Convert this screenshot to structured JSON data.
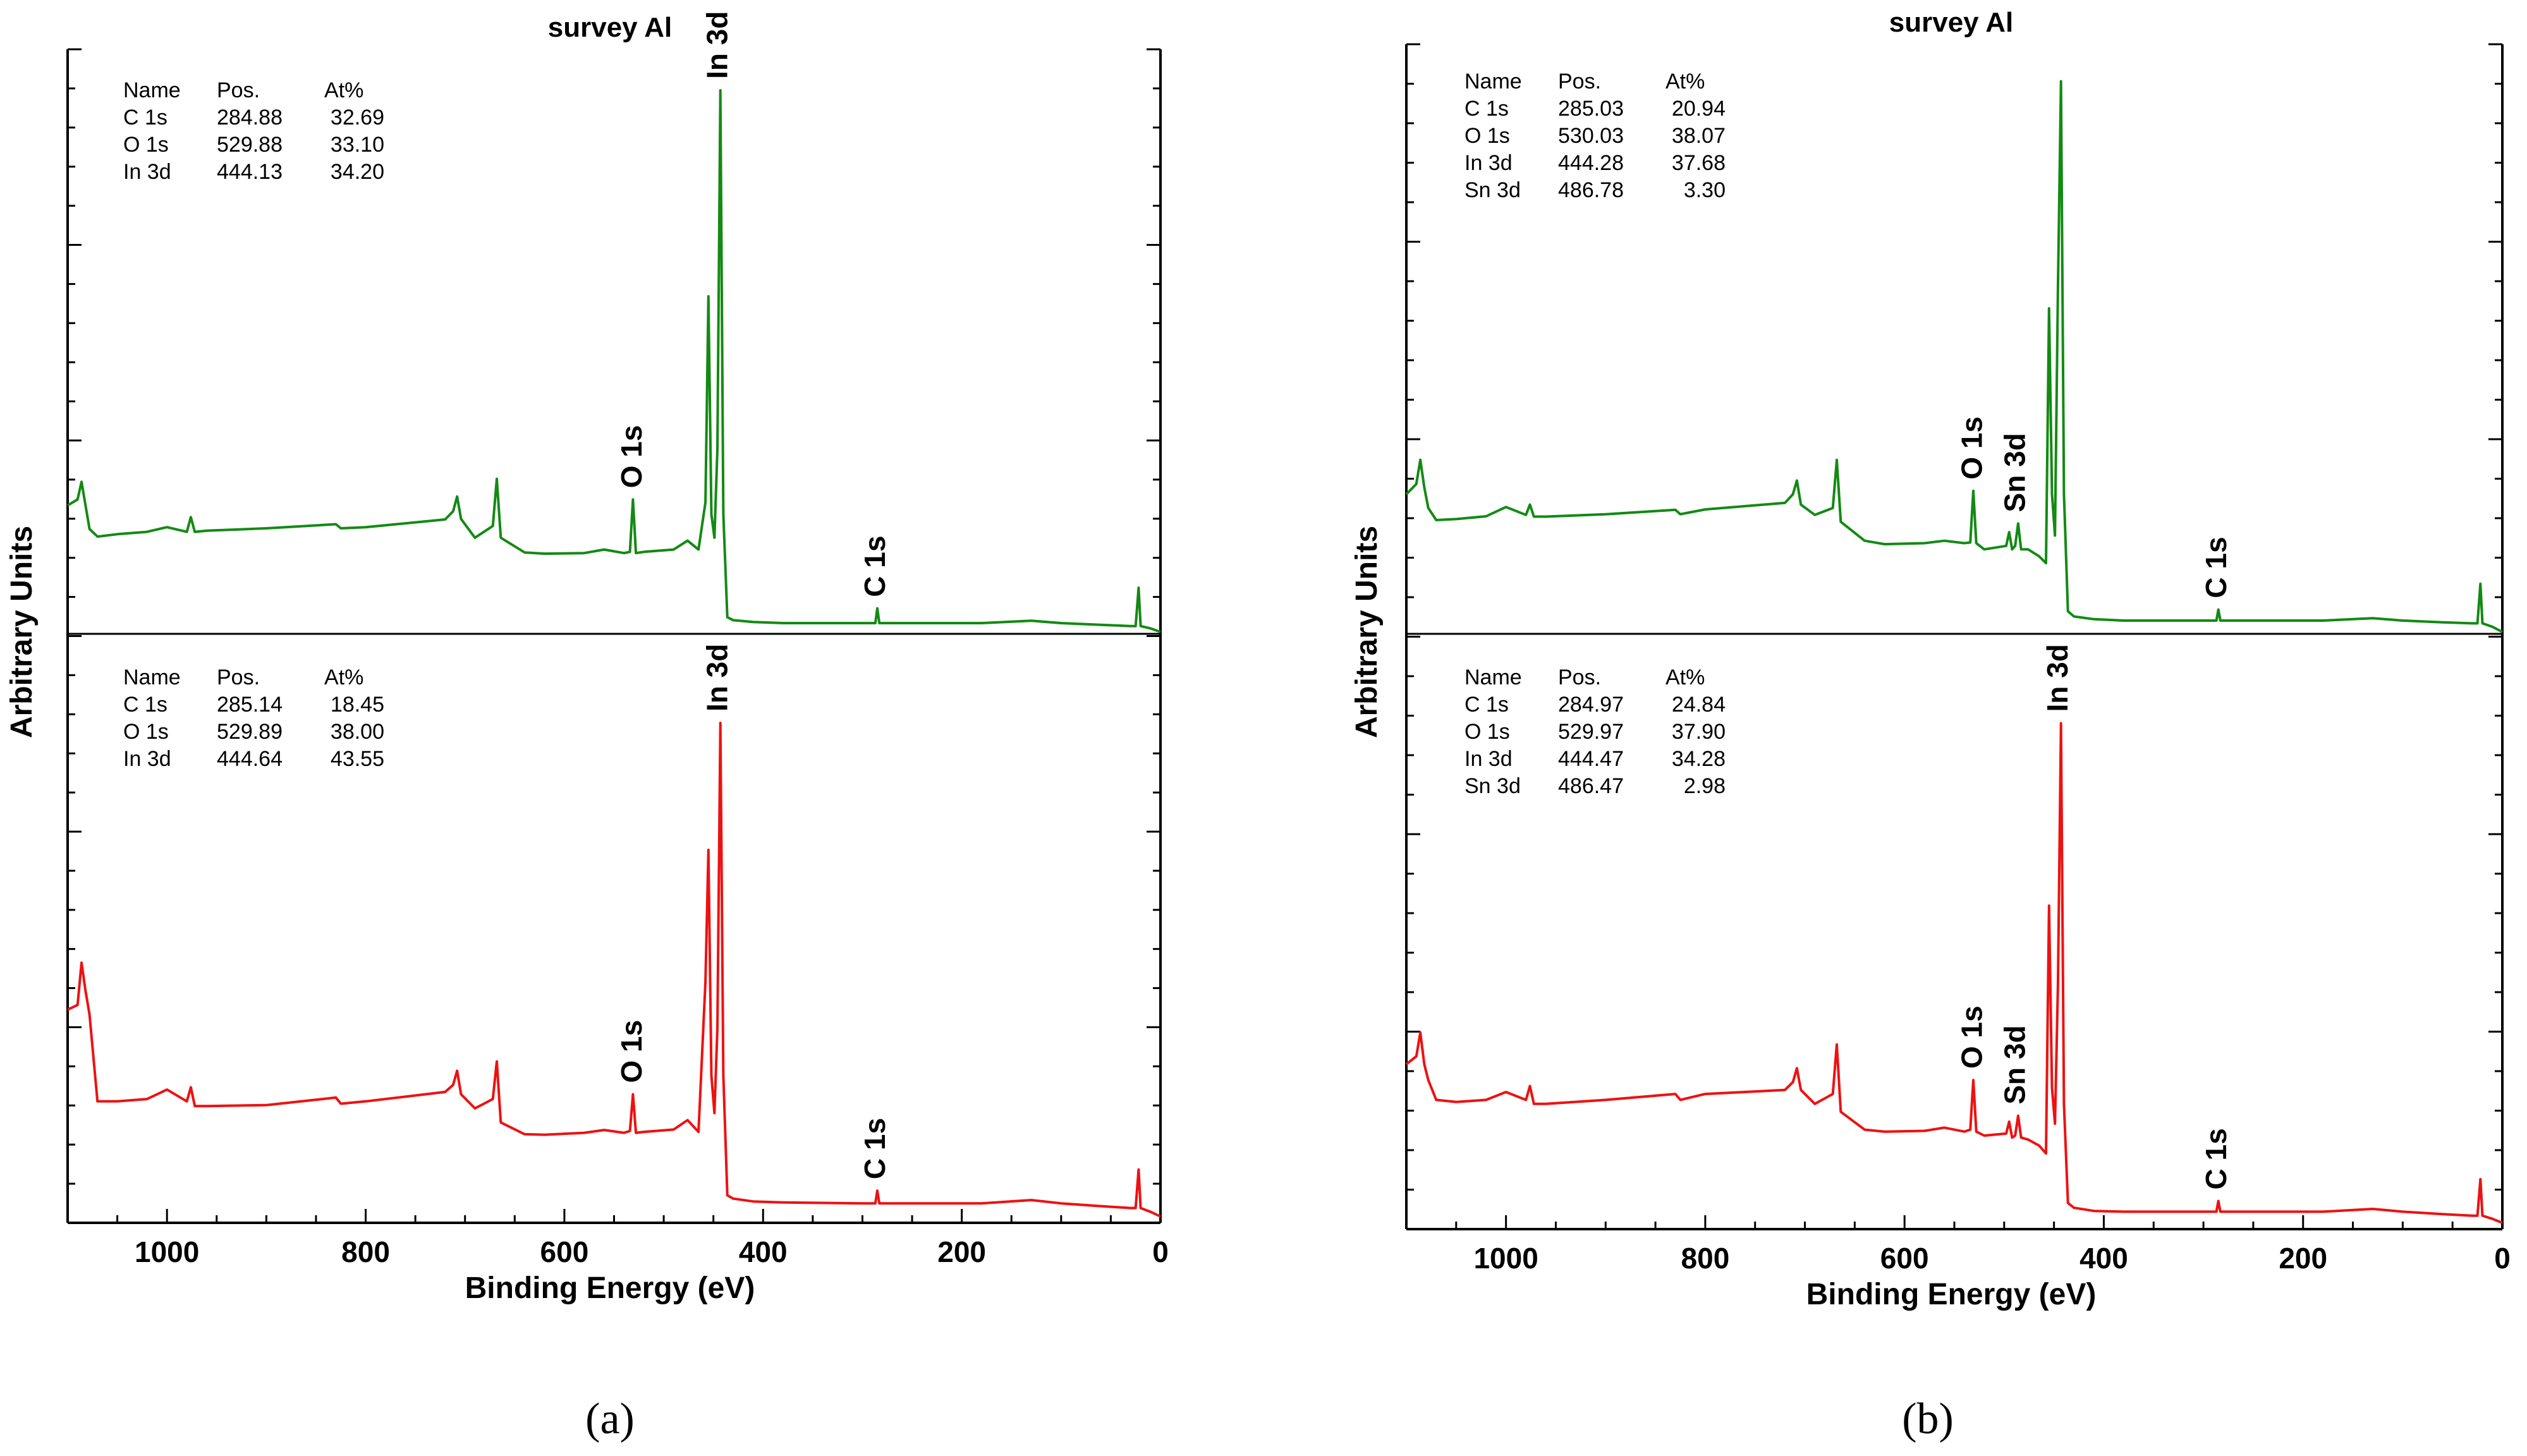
{
  "colors": {
    "top_spectrum": "#138a13",
    "bottom_spectrum": "#ee1111",
    "axis": "#000000"
  },
  "chart_data": [
    {
      "type": "line",
      "panel_caption": "(a)",
      "title": "survey Al",
      "xlabel": "Binding Energy (eV)",
      "ylabel": "Arbitrary Units",
      "x_reversed": true,
      "xlim": [
        1100,
        0
      ],
      "x_ticks": [
        1000,
        800,
        600,
        400,
        200,
        0
      ],
      "y_tick_labels": "none",
      "series": [
        {
          "name": "top (green)",
          "color_key": "top_spectrum",
          "tables": {
            "header": [
              "Name",
              "Pos.",
              "At%"
            ],
            "rows": [
              [
                "C 1s",
                "284.88",
                "32.69"
              ],
              [
                "O 1s",
                "529.88",
                "33.10"
              ],
              [
                "In 3d",
                "444.13",
                "34.20"
              ]
            ]
          },
          "peak_labels": [
            {
              "text": "In 3d",
              "x": 444
            },
            {
              "text": "O 1s",
              "x": 530
            },
            {
              "text": "C 1s",
              "x": 285
            }
          ],
          "x": [
            1100,
            1090,
            1086,
            1082,
            1078,
            1070,
            1050,
            1020,
            1000,
            980,
            976,
            972,
            960,
            900,
            830,
            825,
            800,
            720,
            712,
            708,
            704,
            690,
            672,
            668,
            664,
            640,
            620,
            580,
            560,
            540,
            534,
            531,
            528,
            520,
            490,
            476,
            465,
            458,
            455,
            452,
            449,
            446,
            443,
            440,
            436,
            430,
            410,
            380,
            300,
            287,
            285,
            283,
            250,
            180,
            130,
            100,
            60,
            30,
            25,
            22,
            20,
            10,
            0
          ],
          "y": [
            21.5,
            22.5,
            25.5,
            21.5,
            17.5,
            16.2,
            16.6,
            17.0,
            17.8,
            17.0,
            19.5,
            17.0,
            17.2,
            17.6,
            18.3,
            17.6,
            17.8,
            19.1,
            20.5,
            23.0,
            19.2,
            16.0,
            18.0,
            26.0,
            16.0,
            13.5,
            13.3,
            13.4,
            14.0,
            13.4,
            13.6,
            22.5,
            13.4,
            13.6,
            14.0,
            15.5,
            14.0,
            22.0,
            57.0,
            20.0,
            16.0,
            31.0,
            92.0,
            20.0,
            2.5,
            2.0,
            1.7,
            1.5,
            1.5,
            1.5,
            4.0,
            1.5,
            1.5,
            1.5,
            1.9,
            1.5,
            1.2,
            1.0,
            1.0,
            7.5,
            1.0,
            0.6,
            0.0
          ]
        },
        {
          "name": "bottom (red)",
          "color_key": "bottom_spectrum",
          "tables": {
            "header": [
              "Name",
              "Pos.",
              "At%"
            ],
            "rows": [
              [
                "C 1s",
                "285.14",
                "18.45"
              ],
              [
                "O 1s",
                "529.89",
                "38.00"
              ],
              [
                "In 3d",
                "444.64",
                "43.55"
              ]
            ]
          },
          "peak_labels": [
            {
              "text": "In 3d",
              "x": 444
            },
            {
              "text": "O 1s",
              "x": 530
            },
            {
              "text": "C 1s",
              "x": 285
            }
          ],
          "x": [
            1100,
            1090,
            1086,
            1082,
            1078,
            1070,
            1050,
            1020,
            1000,
            980,
            976,
            972,
            960,
            900,
            830,
            825,
            800,
            720,
            712,
            708,
            704,
            690,
            672,
            668,
            664,
            640,
            620,
            580,
            560,
            540,
            534,
            531,
            528,
            520,
            490,
            476,
            465,
            458,
            455,
            452,
            449,
            446,
            443,
            440,
            436,
            430,
            410,
            380,
            300,
            287,
            285,
            283,
            250,
            180,
            130,
            100,
            60,
            30,
            25,
            22,
            20,
            10,
            0
          ],
          "y": [
            44.0,
            45.0,
            54.0,
            48.0,
            43.0,
            24.5,
            24.5,
            25.0,
            27.0,
            24.5,
            27.5,
            23.5,
            23.5,
            23.7,
            25.3,
            24.0,
            24.5,
            26.5,
            28.0,
            31.0,
            26.0,
            23.0,
            25.0,
            33.0,
            20.0,
            17.5,
            17.4,
            17.8,
            18.4,
            17.8,
            18.2,
            26.0,
            17.8,
            18.0,
            18.5,
            20.5,
            18.0,
            50.0,
            78.0,
            30.0,
            22.0,
            40.0,
            105.0,
            30.0,
            4.5,
            3.8,
            3.2,
            3.0,
            2.8,
            2.8,
            5.5,
            2.8,
            2.8,
            2.8,
            3.5,
            2.8,
            2.2,
            1.8,
            1.8,
            10.0,
            1.8,
            1.0,
            0.0
          ]
        }
      ]
    },
    {
      "type": "line",
      "panel_caption": "(b)",
      "title": "survey Al",
      "xlabel": "Binding Energy (eV)",
      "ylabel": "Arbitrary Units",
      "x_reversed": true,
      "xlim": [
        1100,
        0
      ],
      "x_ticks": [
        1000,
        800,
        600,
        400,
        200,
        0
      ],
      "y_tick_labels": "none",
      "series": [
        {
          "name": "top (green)",
          "color_key": "top_spectrum",
          "tables": {
            "header": [
              "Name",
              "Pos.",
              "At%"
            ],
            "rows": [
              [
                "C 1s",
                "285.03",
                "20.94"
              ],
              [
                "O 1s",
                "530.03",
                "38.07"
              ],
              [
                "In 3d",
                "444.28",
                "37.68"
              ],
              [
                "Sn 3d",
                "486.78",
                "3.30"
              ]
            ]
          },
          "peak_labels": [
            {
              "text": "O 1s",
              "x": 530
            },
            {
              "text": "Sn 3d",
              "x": 487
            },
            {
              "text": "C 1s",
              "x": 285
            }
          ],
          "x": [
            1100,
            1090,
            1086,
            1082,
            1078,
            1070,
            1050,
            1020,
            1000,
            980,
            976,
            972,
            960,
            900,
            830,
            825,
            800,
            720,
            712,
            708,
            704,
            690,
            672,
            668,
            664,
            640,
            620,
            580,
            560,
            540,
            534,
            531,
            528,
            520,
            498,
            495,
            492,
            489,
            486,
            483,
            476,
            465,
            458,
            455,
            452,
            449,
            446,
            443,
            440,
            436,
            430,
            410,
            380,
            300,
            287,
            285,
            283,
            250,
            180,
            130,
            100,
            60,
            30,
            25,
            22,
            20,
            10,
            0
          ],
          "y": [
            40.0,
            43.0,
            50.0,
            42.0,
            36.0,
            32.5,
            32.8,
            33.6,
            36.3,
            34.0,
            37.0,
            33.5,
            33.5,
            34.2,
            35.5,
            34.2,
            35.6,
            37.5,
            40.0,
            44.0,
            37.0,
            34.0,
            36.0,
            50.0,
            32.0,
            26.5,
            25.5,
            25.8,
            26.5,
            25.8,
            26.0,
            41.0,
            25.8,
            24.0,
            25.0,
            29.0,
            24.0,
            25.0,
            31.5,
            24.0,
            24.0,
            22.0,
            20.0,
            94.0,
            40.0,
            28.0,
            100.0,
            160.0,
            40.0,
            6.0,
            4.5,
            3.7,
            3.3,
            3.3,
            3.3,
            6.5,
            3.3,
            3.3,
            3.3,
            4.0,
            3.3,
            2.8,
            2.5,
            2.5,
            14.0,
            2.5,
            1.5,
            0.0
          ]
        },
        {
          "name": "bottom (red)",
          "color_key": "bottom_spectrum",
          "tables": {
            "header": [
              "Name",
              "Pos.",
              "At%"
            ],
            "rows": [
              [
                "C 1s",
                "284.97",
                "24.84"
              ],
              [
                "O 1s",
                "529.97",
                "37.90"
              ],
              [
                "In 3d",
                "444.47",
                "34.28"
              ],
              [
                "Sn 3d",
                "486.47",
                "2.98"
              ]
            ]
          },
          "peak_labels": [
            {
              "text": "In 3d",
              "x": 444
            },
            {
              "text": "O 1s",
              "x": 530
            },
            {
              "text": "Sn 3d",
              "x": 487
            },
            {
              "text": "C 1s",
              "x": 285
            }
          ],
          "x": [
            1100,
            1090,
            1086,
            1082,
            1078,
            1070,
            1050,
            1020,
            1000,
            980,
            976,
            972,
            960,
            900,
            830,
            825,
            800,
            720,
            712,
            708,
            704,
            690,
            672,
            668,
            664,
            640,
            620,
            580,
            560,
            540,
            534,
            531,
            528,
            520,
            498,
            495,
            492,
            489,
            486,
            483,
            476,
            465,
            458,
            455,
            452,
            449,
            446,
            443,
            440,
            436,
            430,
            410,
            380,
            300,
            287,
            285,
            283,
            250,
            180,
            130,
            100,
            60,
            30,
            25,
            22,
            20,
            10,
            0
          ],
          "y": [
            40.0,
            42.0,
            48.0,
            40.0,
            36.0,
            31.0,
            30.5,
            31.0,
            33.0,
            31.0,
            34.5,
            30.0,
            30.0,
            31.0,
            32.5,
            31.0,
            32.5,
            33.5,
            35.5,
            39.0,
            33.5,
            30.0,
            32.5,
            45.0,
            28.0,
            23.5,
            23.0,
            23.2,
            24.0,
            23.0,
            23.5,
            36.0,
            23.0,
            22.0,
            22.5,
            25.5,
            21.5,
            22.0,
            27.0,
            21.5,
            21.0,
            19.5,
            17.5,
            80.0,
            34.0,
            25.0,
            60.0,
            126.0,
            30.0,
            5.0,
            3.8,
            3.0,
            2.8,
            2.8,
            2.8,
            5.5,
            2.8,
            2.8,
            2.8,
            3.5,
            2.8,
            2.2,
            1.8,
            1.8,
            11.0,
            1.8,
            1.0,
            0.0
          ]
        }
      ]
    }
  ]
}
